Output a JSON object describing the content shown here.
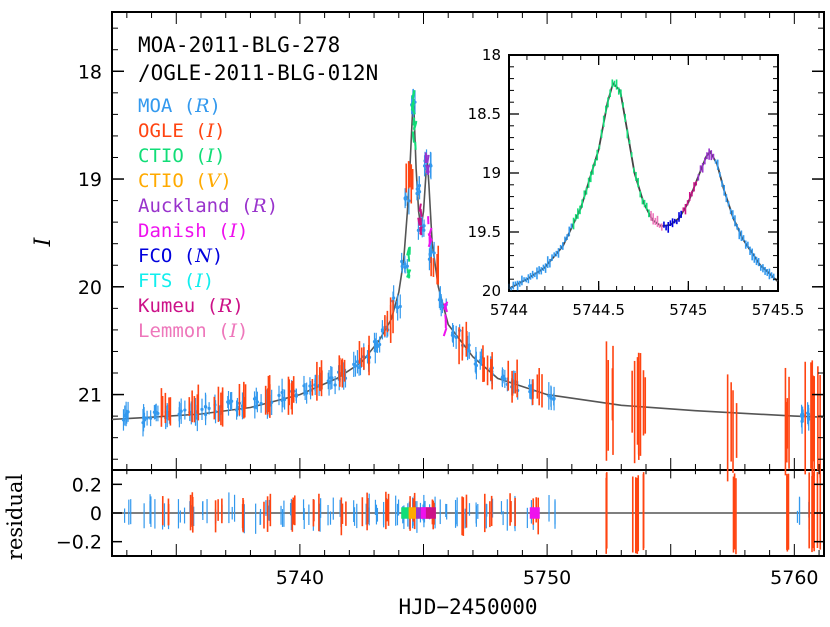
{
  "chart_data": [
    {
      "type": "scatter",
      "title": [
        "MOA-2011-BLG-278",
        "/OGLE-2011-BLG-012N"
      ],
      "xlabel": "HJD−2450000",
      "ylabel": "I",
      "xlim": [
        5732.4,
        5761.2
      ],
      "ylim": [
        17.45,
        21.7
      ],
      "y_inverted": true,
      "xticks": [
        "5740",
        "5750",
        "5760"
      ],
      "yticks": [
        "18",
        "19",
        "20",
        "21"
      ],
      "legend": [
        {
          "name": "MOA",
          "band": "R",
          "color": "#3399ee"
        },
        {
          "name": "OGLE",
          "band": "I",
          "color": "#ff4411"
        },
        {
          "name": "CTIO",
          "band": "I",
          "color": "#11dd77"
        },
        {
          "name": "CTIO",
          "band": "V",
          "color": "#ffaa00"
        },
        {
          "name": "Auckland",
          "band": "R",
          "color": "#9933cc"
        },
        {
          "name": "Danish",
          "band": "I",
          "color": "#ee11ee"
        },
        {
          "name": "FCO",
          "band": "N",
          "color": "#0000dd"
        },
        {
          "name": "FTS",
          "band": "I",
          "color": "#11eeee"
        },
        {
          "name": "Kumeu",
          "band": "R",
          "color": "#cc1188"
        },
        {
          "name": "Lemmon",
          "band": "I",
          "color": "#ee77bb"
        }
      ],
      "model_curve": [
        [
          5732.4,
          21.23
        ],
        [
          5734,
          21.21
        ],
        [
          5736,
          21.18
        ],
        [
          5738,
          21.12
        ],
        [
          5740,
          21.0
        ],
        [
          5741.5,
          20.85
        ],
        [
          5742.5,
          20.7
        ],
        [
          5743.2,
          20.5
        ],
        [
          5743.7,
          20.3
        ],
        [
          5744.0,
          20.05
        ],
        [
          5744.2,
          19.75
        ],
        [
          5744.35,
          19.3
        ],
        [
          5744.45,
          18.9
        ],
        [
          5744.55,
          18.4
        ],
        [
          5744.58,
          18.23
        ],
        [
          5744.62,
          18.4
        ],
        [
          5744.7,
          18.9
        ],
        [
          5744.8,
          19.3
        ],
        [
          5744.9,
          19.45
        ],
        [
          5745.0,
          19.3
        ],
        [
          5745.1,
          18.95
        ],
        [
          5745.15,
          18.82
        ],
        [
          5745.22,
          19.05
        ],
        [
          5745.35,
          19.6
        ],
        [
          5745.6,
          20.0
        ],
        [
          5746,
          20.35
        ],
        [
          5747,
          20.65
        ],
        [
          5748,
          20.85
        ],
        [
          5750,
          21.0
        ],
        [
          5753,
          21.1
        ],
        [
          5756,
          21.15
        ],
        [
          5760,
          21.2
        ],
        [
          5761.2,
          21.21
        ]
      ],
      "moa_observations": [
        [
          5733.0,
          21.2
        ],
        [
          5733.8,
          21.22
        ],
        [
          5734.1,
          21.18
        ],
        [
          5734.6,
          21.2
        ],
        [
          5735.2,
          21.16
        ],
        [
          5735.7,
          21.18
        ],
        [
          5736.2,
          21.15
        ],
        [
          5736.7,
          21.14
        ],
        [
          5737.2,
          21.1
        ],
        [
          5737.6,
          21.12
        ],
        [
          5738.3,
          21.08
        ],
        [
          5738.7,
          21.06
        ],
        [
          5739.3,
          21.02
        ],
        [
          5739.7,
          21.0
        ],
        [
          5740.3,
          20.95
        ],
        [
          5740.7,
          20.92
        ],
        [
          5741.3,
          20.87
        ],
        [
          5741.7,
          20.82
        ],
        [
          5742.3,
          20.73
        ],
        [
          5742.7,
          20.66
        ],
        [
          5743.1,
          20.55
        ],
        [
          5743.5,
          20.4
        ],
        [
          5743.9,
          20.15
        ],
        [
          5744.2,
          19.8
        ],
        [
          5744.4,
          19.2
        ],
        [
          5744.6,
          18.3
        ],
        [
          5744.75,
          19.1
        ],
        [
          5744.95,
          19.45
        ],
        [
          5745.15,
          18.85
        ],
        [
          5745.4,
          19.7
        ],
        [
          5745.8,
          20.15
        ],
        [
          5746.3,
          20.45
        ],
        [
          5746.7,
          20.56
        ],
        [
          5747.2,
          20.7
        ],
        [
          5747.7,
          20.78
        ],
        [
          5748.3,
          20.86
        ],
        [
          5748.7,
          20.92
        ],
        [
          5749.3,
          20.96
        ],
        [
          5750.2,
          21.0
        ],
        [
          5760.2,
          21.22
        ],
        [
          5760.7,
          21.2
        ]
      ],
      "ogle_observations": [
        [
          5734.6,
          21.15
        ],
        [
          5735.7,
          21.12
        ],
        [
          5736.7,
          21.1
        ],
        [
          5737.7,
          21.07
        ],
        [
          5738.7,
          21.03
        ],
        [
          5739.7,
          20.98
        ],
        [
          5740.7,
          20.9
        ],
        [
          5741.7,
          20.78
        ],
        [
          5742.6,
          20.64
        ],
        [
          5743.6,
          20.32
        ],
        [
          5744.5,
          19.0
        ],
        [
          5745.5,
          19.8
        ],
        [
          5746.6,
          20.5
        ],
        [
          5747.6,
          20.74
        ],
        [
          5748.6,
          20.88
        ],
        [
          5749.6,
          20.98
        ],
        [
          5752.5,
          21.05
        ],
        [
          5753.6,
          21.12
        ],
        [
          5753.8,
          21.05
        ],
        [
          5757.5,
          21.3
        ],
        [
          5759.8,
          21.3
        ],
        [
          5760.6,
          21.22
        ],
        [
          5760.9,
          21.25
        ]
      ],
      "inset": {
        "xlim": [
          5744,
          5745.5
        ],
        "ylim": [
          18,
          20
        ],
        "y_inverted": true,
        "xticks": [
          "5744",
          "5744.5",
          "5745",
          "5745.5"
        ],
        "yticks": [
          "18",
          "18.5",
          "19",
          "19.5",
          "20"
        ],
        "model_curve": [
          [
            5744.0,
            19.98
          ],
          [
            5744.1,
            19.9
          ],
          [
            5744.2,
            19.8
          ],
          [
            5744.3,
            19.62
          ],
          [
            5744.4,
            19.3
          ],
          [
            5744.5,
            18.8
          ],
          [
            5744.55,
            18.4
          ],
          [
            5744.58,
            18.24
          ],
          [
            5744.62,
            18.3
          ],
          [
            5744.66,
            18.65
          ],
          [
            5744.7,
            19.0
          ],
          [
            5744.75,
            19.25
          ],
          [
            5744.8,
            19.4
          ],
          [
            5744.85,
            19.45
          ],
          [
            5744.9,
            19.44
          ],
          [
            5744.95,
            19.38
          ],
          [
            5745.0,
            19.25
          ],
          [
            5745.05,
            19.05
          ],
          [
            5745.1,
            18.86
          ],
          [
            5745.12,
            18.82
          ],
          [
            5745.16,
            18.92
          ],
          [
            5745.2,
            19.15
          ],
          [
            5745.25,
            19.38
          ],
          [
            5745.3,
            19.55
          ],
          [
            5745.4,
            19.78
          ],
          [
            5745.5,
            19.92
          ]
        ]
      },
      "residual_panel": {
        "ylabel": "residual",
        "ylim": [
          -0.3,
          0.3
        ],
        "yticks": [
          "0.2",
          "0",
          "−0.2"
        ]
      }
    }
  ]
}
